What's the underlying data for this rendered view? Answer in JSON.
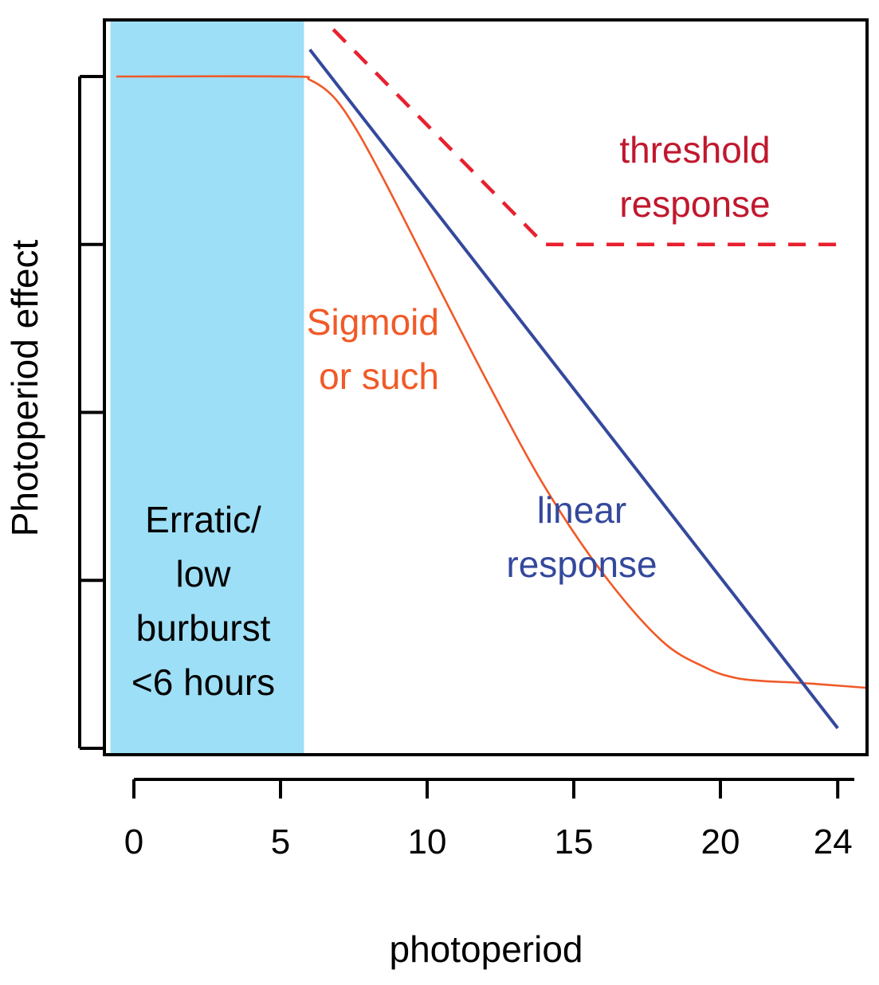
{
  "chart_data": {
    "type": "line",
    "title": "",
    "xlabel": "photoperiod",
    "ylabel": "Photoperiod effect",
    "xlim": [
      -0.8,
      25
    ],
    "ylim": [
      0,
      1
    ],
    "x_ticks": [
      0,
      5,
      10,
      15,
      20,
      24
    ],
    "x_tick_labels": [
      "0",
      "5",
      "10",
      "15",
      "20",
      "24"
    ],
    "y_ticks": [
      0,
      0.25,
      0.5,
      0.75,
      1.0
    ],
    "y_tick_labels": [],
    "grid": false,
    "shaded_region": {
      "x": [
        -0.8,
        5.8
      ],
      "color": "#9ddff6",
      "label_lines": [
        "Erratic/",
        "low",
        "burburst",
        "<6 hours"
      ]
    },
    "series": [
      {
        "key": "sigmoid",
        "label_lines": [
          "Sigmoid",
          "or such"
        ],
        "color": "#f05a28",
        "style": "solid",
        "x": [
          -0.6,
          5.3,
          6.0,
          6.8,
          7.6,
          8.6,
          10.0,
          12.0,
          14.0,
          16.0,
          18.0,
          19.5,
          20.5,
          21.5,
          22.5,
          23.5,
          25.0
        ],
        "y": [
          1.0,
          1.0,
          0.995,
          0.97,
          0.92,
          0.84,
          0.72,
          0.55,
          0.39,
          0.26,
          0.16,
          0.12,
          0.105,
          0.1,
          0.098,
          0.095,
          0.09
        ]
      },
      {
        "key": "linear",
        "label_lines": [
          "linear",
          "response"
        ],
        "color": "#34499c",
        "style": "solid",
        "x": [
          6.0,
          24.0
        ],
        "y": [
          1.04,
          0.03
        ]
      },
      {
        "key": "threshold",
        "label_lines": [
          "threshold",
          "response"
        ],
        "color": "#e8202f",
        "label_color": "#c0182e",
        "style": "dashed",
        "x": [
          6.8,
          14.0,
          24.0
        ],
        "y": [
          1.07,
          0.75,
          0.75
        ]
      }
    ]
  }
}
